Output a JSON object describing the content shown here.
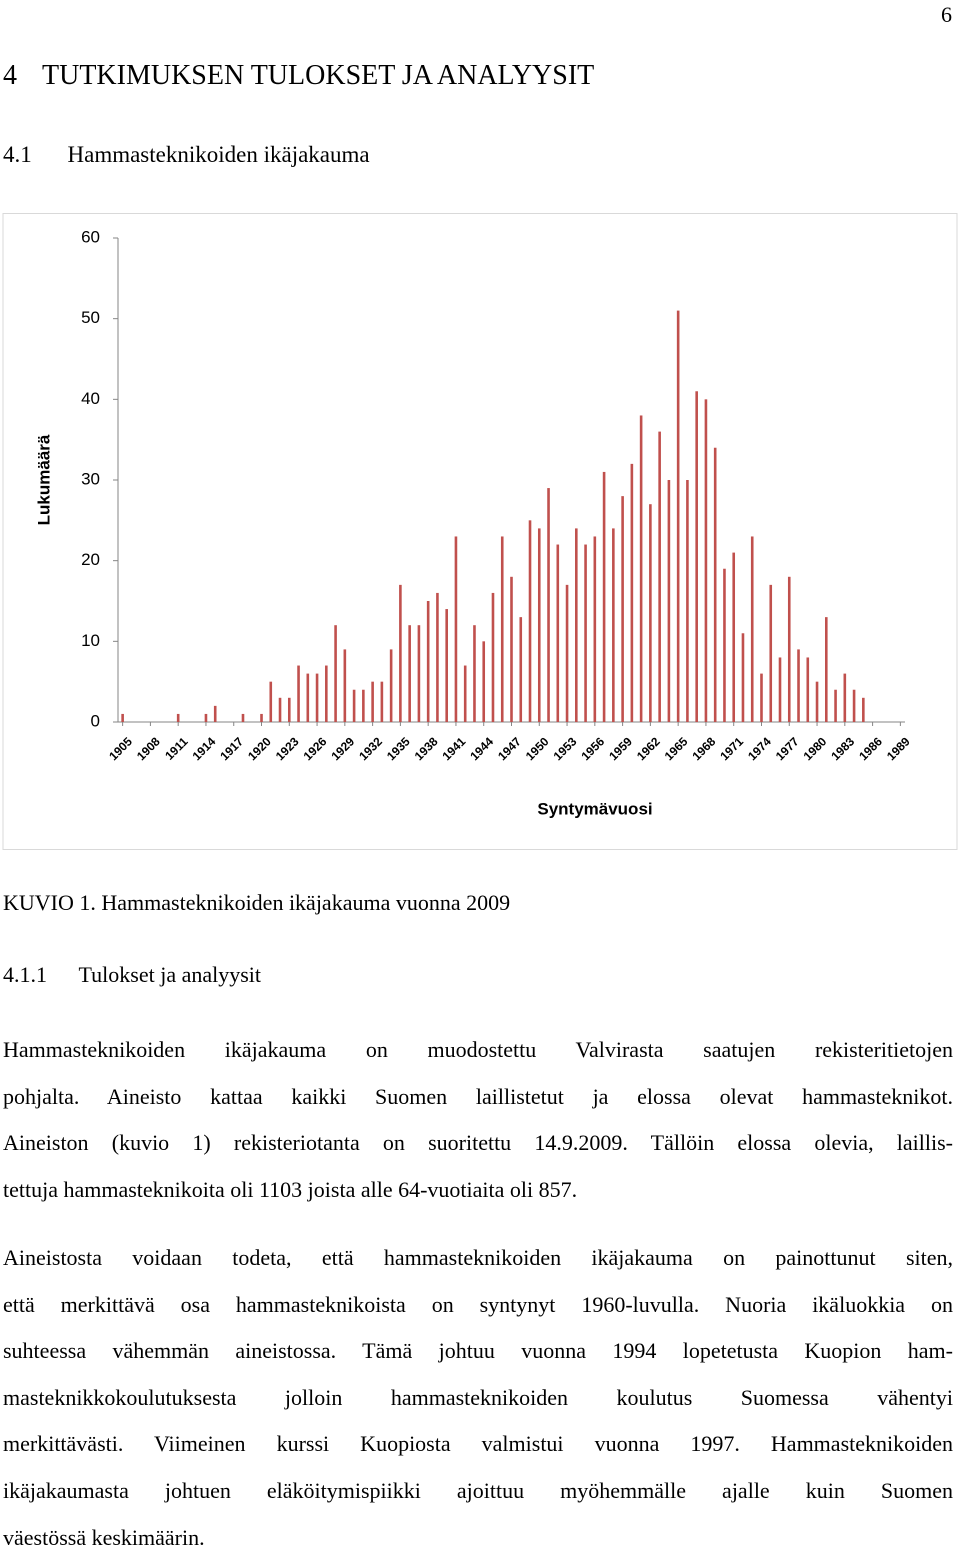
{
  "page_number": "6",
  "heading": {
    "number": "4",
    "title": "TUTKIMUKSEN TULOKSET JA ANALYYSIT"
  },
  "section": {
    "number": "4.1",
    "title": "Hammasteknikoiden ikäjakauma"
  },
  "chart_data": {
    "type": "bar",
    "x": [
      1905,
      1906,
      1907,
      1908,
      1909,
      1910,
      1911,
      1912,
      1913,
      1914,
      1915,
      1916,
      1917,
      1918,
      1919,
      1920,
      1921,
      1922,
      1923,
      1924,
      1925,
      1926,
      1927,
      1928,
      1929,
      1930,
      1931,
      1932,
      1933,
      1934,
      1935,
      1936,
      1937,
      1938,
      1939,
      1940,
      1941,
      1942,
      1943,
      1944,
      1945,
      1946,
      1947,
      1948,
      1949,
      1950,
      1951,
      1952,
      1953,
      1954,
      1955,
      1956,
      1957,
      1958,
      1959,
      1960,
      1961,
      1962,
      1963,
      1964,
      1965,
      1966,
      1967,
      1968,
      1969,
      1970,
      1971,
      1972,
      1973,
      1974,
      1975,
      1976,
      1977,
      1978,
      1979,
      1980,
      1981,
      1982,
      1983,
      1984,
      1985,
      1986,
      1987,
      1988,
      1989
    ],
    "values": [
      1,
      0,
      0,
      0,
      0,
      0,
      1,
      0,
      0,
      1,
      2,
      0,
      0,
      1,
      0,
      1,
      5,
      3,
      3,
      7,
      6,
      6,
      7,
      12,
      9,
      4,
      4,
      5,
      5,
      9,
      17,
      12,
      12,
      15,
      16,
      14,
      23,
      7,
      12,
      10,
      16,
      23,
      18,
      13,
      25,
      24,
      29,
      22,
      17,
      24,
      22,
      23,
      31,
      24,
      28,
      32,
      38,
      27,
      36,
      30,
      51,
      30,
      41,
      40,
      34,
      19,
      21,
      11,
      23,
      6,
      17,
      8,
      18,
      9,
      8,
      5,
      13,
      4,
      6,
      4,
      3,
      0,
      0,
      0,
      0
    ],
    "color": "#c0504d",
    "xlabel": "Syntymävuosi",
    "ylabel": "Lukumäärä",
    "xlim": [
      1904.5,
      1989.5
    ],
    "xticks": [
      1905,
      1908,
      1911,
      1914,
      1917,
      1920,
      1923,
      1926,
      1929,
      1932,
      1935,
      1938,
      1941,
      1944,
      1947,
      1950,
      1953,
      1956,
      1959,
      1962,
      1965,
      1968,
      1971,
      1974,
      1977,
      1980,
      1983,
      1986,
      1989
    ],
    "ylim": [
      0,
      60
    ],
    "yticks": [
      0,
      10,
      20,
      30,
      40,
      50,
      60
    ]
  },
  "caption": "KUVIO 1. Hammasteknikoiden ikäjakauma vuonna 2009",
  "subsection": {
    "number": "4.1.1",
    "title": "Tulokset ja analyysit"
  },
  "paragraphs": [
    [
      "Hammasteknikoiden ikäjakauma on muodostettu Valvirasta saatujen rekisteritietojen",
      "pohjalta. Aineisto kattaa kaikki Suomen laillistetut ja elossa olevat hammasteknikot.",
      "Aineiston (kuvio 1) rekisteriotanta on suoritettu 14.9.2009. Tällöin elossa olevia, laillis-",
      "tettuja hammasteknikoita oli 1103 joista alle 64-vuotiaita oli 857."
    ],
    [
      "Aineistosta voidaan todeta, että hammasteknikoiden ikäjakauma on painottunut siten,",
      "että merkittävä osa hammasteknikoista on syntynyt 1960-luvulla. Nuoria ikäluokkia on",
      "suhteessa vähemmän aineistossa. Tämä johtuu vuonna 1994 lopetetusta Kuopion ham-",
      "masteknikkokoulutuksesta jolloin hammasteknikoiden koulutus Suomessa vähentyi",
      "merkittävästi. Viimeinen kurssi Kuopiosta valmistui vuonna 1997. Hammasteknikoiden",
      "ikäjakaumasta johtuen eläköitymispiikki ajoittuu myöhemmälle ajalle kuin Suomen",
      "väestössä keskimäärin."
    ]
  ]
}
